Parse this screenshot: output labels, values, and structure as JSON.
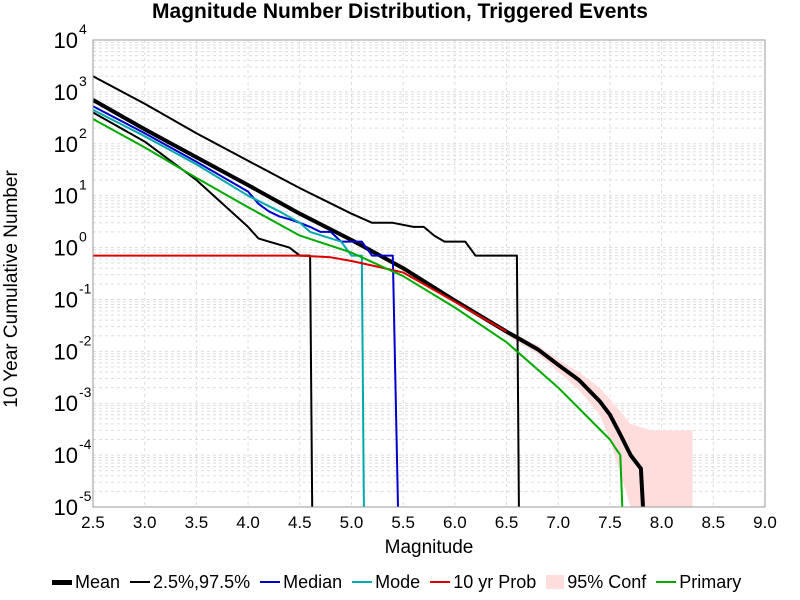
{
  "chart_data": {
    "type": "line",
    "title": "Magnitude Number Distribution, Triggered Events",
    "xlabel": "Magnitude",
    "ylabel": "10 Year Cumulative Number",
    "xlim": [
      2.5,
      9.0
    ],
    "ylim": [
      1e-05,
      10000
    ],
    "y_scale": "log",
    "grid": true,
    "legend_position": "bottom",
    "x_ticks": [
      "2.5",
      "3.0",
      "3.5",
      "4.0",
      "4.5",
      "5.0",
      "5.5",
      "6.0",
      "6.5",
      "7.0",
      "7.5",
      "8.0",
      "8.5",
      "9.0"
    ],
    "y_tick_base": "10",
    "y_tick_exponents": [
      "4",
      "3",
      "2",
      "1",
      "0",
      "-1",
      "-2",
      "-3",
      "-4",
      "-5"
    ],
    "series": [
      {
        "name": "Mean",
        "color": "#000000",
        "style": "thick",
        "x": [
          2.5,
          3.0,
          3.5,
          4.0,
          4.5,
          5.0,
          5.5,
          6.0,
          6.5,
          6.8,
          7.0,
          7.2,
          7.4,
          7.5,
          7.6,
          7.7,
          7.8,
          7.82
        ],
        "y": [
          700,
          190,
          55,
          16,
          4.5,
          1.4,
          0.4,
          0.095,
          0.024,
          0.011,
          0.0055,
          0.0028,
          0.0011,
          0.0006,
          0.00025,
          0.0001,
          5.5e-05,
          1e-05
        ]
      },
      {
        "name": "2.5%,97.5%",
        "color": "#000000",
        "style": "thin",
        "x": [
          2.5,
          3.0,
          3.5,
          4.0,
          4.5,
          5.0,
          5.2,
          5.4,
          5.6,
          5.7,
          5.8,
          5.9,
          6.0,
          6.1,
          6.2,
          6.3,
          6.4,
          6.5,
          6.6,
          6.6,
          6.62
        ],
        "y": [
          2000,
          590,
          160,
          47,
          14,
          4.5,
          3.0,
          3.0,
          2.5,
          2.5,
          1.7,
          1.3,
          1.3,
          1.3,
          0.7,
          0.7,
          0.7,
          0.7,
          0.7,
          0.7,
          1e-05
        ]
      },
      {
        "name": "",
        "color": "#000000",
        "style": "thin",
        "x": [
          2.5,
          3.0,
          3.5,
          4.0,
          4.1,
          4.2,
          4.4,
          4.5,
          4.6,
          4.62
        ],
        "y": [
          400,
          110,
          20,
          2.5,
          1.5,
          1.3,
          1.0,
          0.7,
          0.7,
          1e-05
        ]
      },
      {
        "name": "Median",
        "color": "#0000cc",
        "style": "thin",
        "x": [
          2.5,
          3.0,
          3.5,
          4.0,
          4.1,
          4.2,
          4.3,
          4.4,
          4.5,
          4.6,
          4.7,
          4.8,
          4.9,
          5.0,
          5.1,
          5.2,
          5.4,
          5.45
        ],
        "y": [
          530,
          160,
          45,
          12,
          7,
          5,
          4,
          3.5,
          3.0,
          2.5,
          2.0,
          2.0,
          1.3,
          1.3,
          1.3,
          0.7,
          0.7,
          1e-05
        ]
      },
      {
        "name": "Mode",
        "color": "#00aaaa",
        "style": "thin",
        "x": [
          2.5,
          3.0,
          3.5,
          4.0,
          4.3,
          4.5,
          4.6,
          4.8,
          4.9,
          5.0,
          5.1,
          5.12
        ],
        "y": [
          450,
          140,
          40,
          10,
          5,
          3.0,
          2.0,
          1.5,
          1.3,
          0.7,
          0.7,
          1e-05
        ]
      },
      {
        "name": "10 yr Prob",
        "color": "#dd0000",
        "style": "thin",
        "x": [
          2.5,
          3.0,
          4.0,
          4.5,
          4.8,
          5.0,
          5.2,
          5.5,
          6.0,
          6.5
        ],
        "y": [
          0.7,
          0.7,
          0.7,
          0.7,
          0.65,
          0.55,
          0.45,
          0.33,
          0.09,
          0.024
        ]
      },
      {
        "name": "Primary",
        "color": "#00aa00",
        "style": "thin",
        "x": [
          2.5,
          3.0,
          3.5,
          4.0,
          4.5,
          5.0,
          5.5,
          6.0,
          6.5,
          7.0,
          7.5,
          7.55,
          7.6,
          7.62
        ],
        "y": [
          300,
          85,
          22,
          6,
          1.7,
          0.8,
          0.28,
          0.07,
          0.015,
          0.002,
          0.0002,
          0.00014,
          0.0001,
          1e-05
        ]
      }
    ],
    "confidence_band": {
      "name": "95% Conf",
      "color": "#ffdddd",
      "x": [
        6.5,
        6.8,
        7.0,
        7.2,
        7.4,
        7.5,
        7.7,
        7.9,
        8.3
      ],
      "upper": [
        0.026,
        0.013,
        0.007,
        0.004,
        0.002,
        0.0012,
        0.0004,
        0.0003,
        0.0003
      ],
      "lower": [
        0.02,
        0.009,
        0.004,
        0.0018,
        0.0006,
        0.0002,
        1e-05,
        1e-05,
        1e-05
      ]
    }
  }
}
